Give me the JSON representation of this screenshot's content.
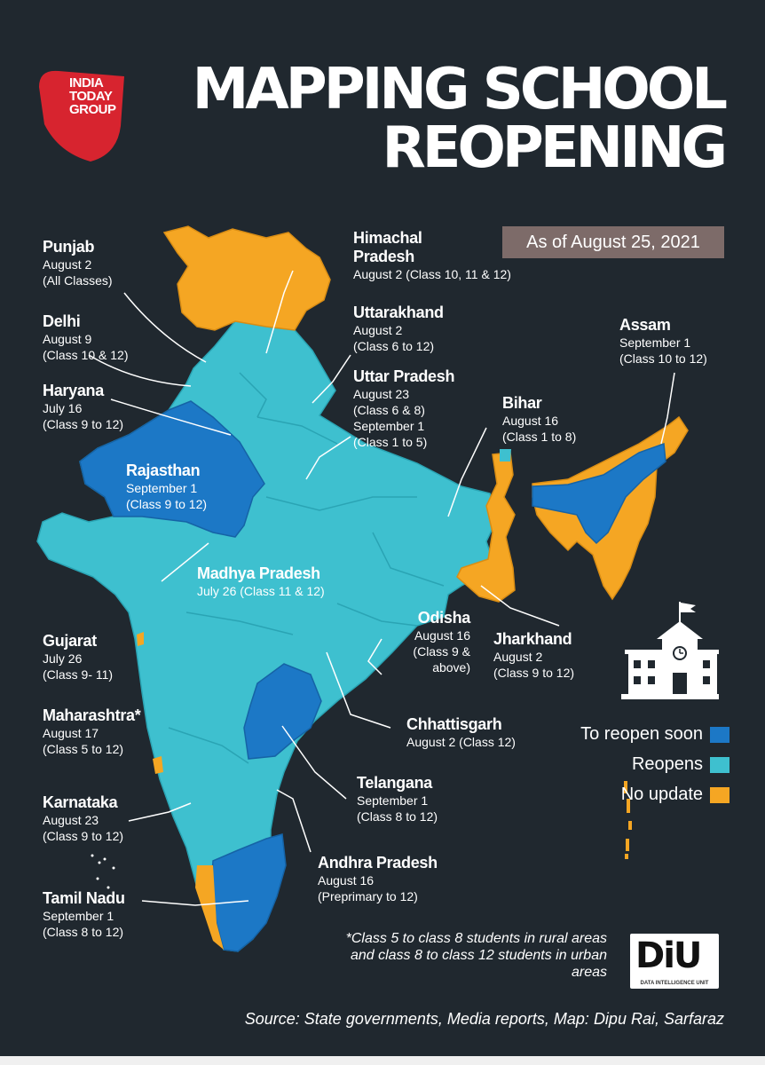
{
  "logo": {
    "lines": [
      "INDIA",
      "TODAY",
      "GROUP"
    ]
  },
  "title": {
    "line1": "MAPPING SCHOOL",
    "line2": "REOPENING"
  },
  "date": "As of August 25, 2021",
  "colors": {
    "background": "#20282f",
    "reopen_soon": "#1c78c6",
    "reopens": "#3ec0cf",
    "no_update": "#f5a623",
    "badge": "#7d6b69",
    "logo_red": "#d7242f"
  },
  "states": [
    {
      "name": "Punjab",
      "status": "reopens",
      "lines": [
        "August 2",
        "(All Classes)"
      ]
    },
    {
      "name": "Delhi",
      "status": "reopens",
      "lines": [
        "August 9",
        "(Class 10 & 12)"
      ]
    },
    {
      "name": "Haryana",
      "status": "reopens",
      "lines": [
        "July 16",
        "(Class 9 to 12)"
      ]
    },
    {
      "name": "Rajasthan",
      "status": "reopen_soon",
      "lines": [
        "September 1",
        "(Class 9 to 12)"
      ]
    },
    {
      "name": "Madhya Pradesh",
      "status": "reopens",
      "lines": [
        "July 26 (Class 11 & 12)"
      ]
    },
    {
      "name": "Gujarat",
      "status": "reopens",
      "lines": [
        "July 26",
        "(Class 9- 11)"
      ]
    },
    {
      "name": "Maharashtra*",
      "status": "reopens",
      "lines": [
        "August 17",
        "(Class 5 to 12)"
      ]
    },
    {
      "name": "Karnataka",
      "status": "reopens",
      "lines": [
        "August 23",
        "(Class 9 to 12)"
      ]
    },
    {
      "name": "Tamil Nadu",
      "status": "reopen_soon",
      "lines": [
        "September 1",
        "(Class 8 to 12)"
      ]
    },
    {
      "name": "Himachal Pradesh",
      "status": "no_update",
      "lines": [
        "August 2 (Class 10, 11 & 12)"
      ]
    },
    {
      "name": "Uttarakhand",
      "status": "reopens",
      "lines": [
        "August 2",
        "(Class 6 to 12)"
      ]
    },
    {
      "name": "Uttar Pradesh",
      "status": "reopens",
      "lines": [
        "August 23",
        "(Class 6 & 8)",
        "September 1",
        "(Class 1 to 5)"
      ]
    },
    {
      "name": "Bihar",
      "status": "reopens",
      "lines": [
        "August 16",
        "(Class 1 to 8)"
      ]
    },
    {
      "name": "Assam",
      "status": "reopen_soon",
      "lines": [
        "September 1",
        "(Class 10 to 12)"
      ]
    },
    {
      "name": "Odisha",
      "status": "reopens",
      "lines": [
        "August 16",
        "(Class 9 & above)"
      ]
    },
    {
      "name": "Jharkhand",
      "status": "reopens",
      "lines": [
        "August 2",
        "(Class 9 to 12)"
      ]
    },
    {
      "name": "Chhattisgarh",
      "status": "reopens",
      "lines": [
        "August 2 (Class 12)"
      ]
    },
    {
      "name": "Telangana",
      "status": "reopen_soon",
      "lines": [
        "September 1",
        "(Class 8 to 12)"
      ]
    },
    {
      "name": "Andhra Pradesh",
      "status": "reopen_soon",
      "lines": [
        "August 16",
        "(Preprimary to 12)"
      ]
    }
  ],
  "legend": [
    {
      "label": "To reopen soon",
      "color": "#1c78c6"
    },
    {
      "label": "Reopens",
      "color": "#3ec0cf"
    },
    {
      "label": "No update",
      "color": "#f5a623"
    }
  ],
  "footnote": "*Class 5 to class 8 students in rural areas and class 8 to class 12 students in urban areas",
  "diu": {
    "mark": "DiU",
    "sub": "DATA INTELLIGENCE UNIT"
  },
  "source": "Source: State governments, Media reports, Map: Dipu Rai, Sarfaraz",
  "icons": [
    "school-building-icon",
    "flag-icon"
  ]
}
